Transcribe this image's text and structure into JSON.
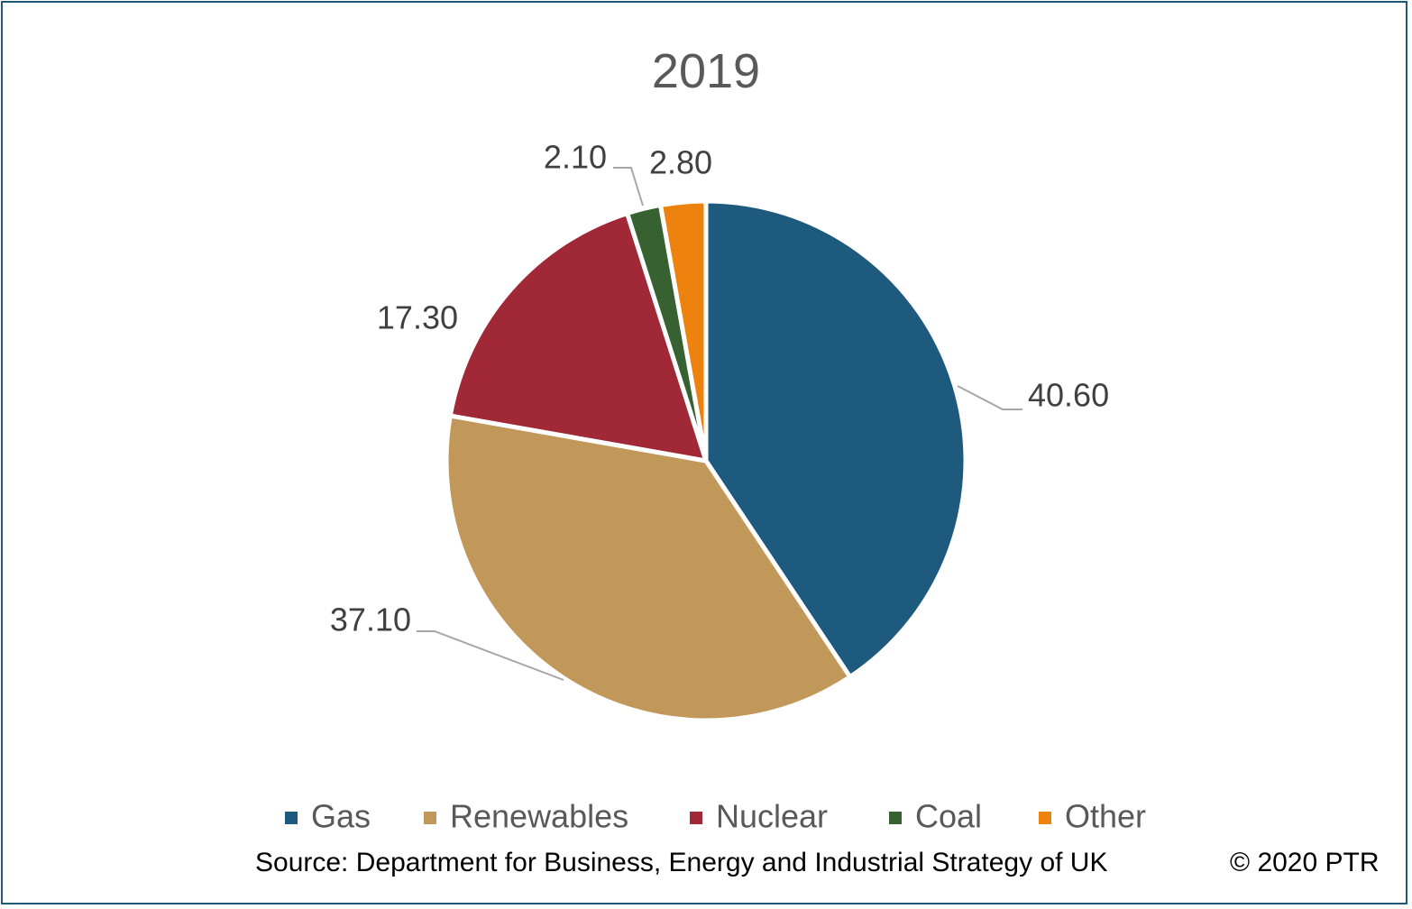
{
  "chart_data": {
    "type": "pie",
    "title": "2019",
    "categories": [
      "Gas",
      "Renewables",
      "Nuclear",
      "Coal",
      "Other"
    ],
    "values": [
      40.6,
      37.1,
      17.3,
      2.1,
      2.8
    ],
    "data_labels": [
      "40.60",
      "37.10",
      "17.30",
      "2.10",
      "2.80"
    ],
    "colors": [
      "#1e5a7d",
      "#c2975a",
      "#a02837",
      "#376130",
      "#ee820e"
    ],
    "legend_position": "bottom"
  },
  "footer": {
    "source": "Source: Department for Business, Energy and Industrial Strategy of UK",
    "copyright": "© 2020 PTR"
  }
}
